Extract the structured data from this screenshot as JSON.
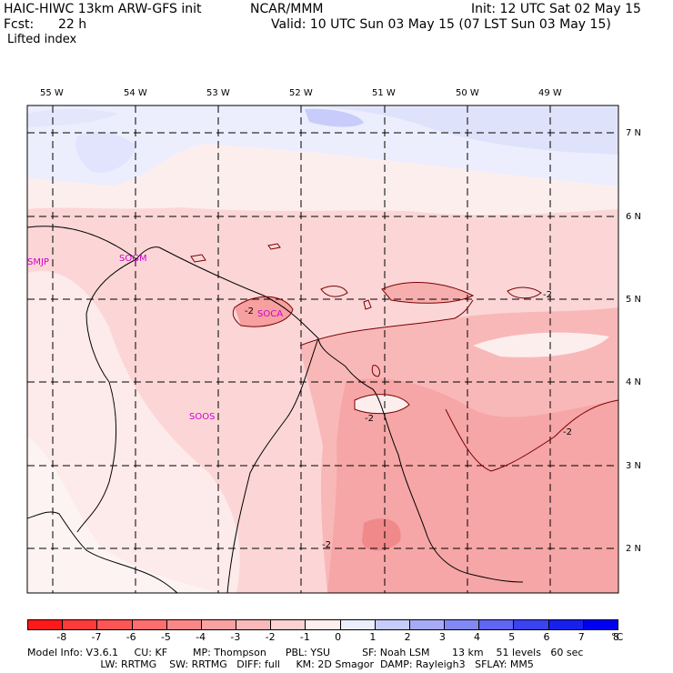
{
  "header": {
    "model": "HAIC-HIWC 13km ARW-GFS init",
    "org": "NCAR/MMM",
    "init": "Init: 12 UTC Sat 02 May 15",
    "fcst_label": "Fcst:",
    "fcst_value": "22 h",
    "valid": "Valid: 10 UTC Sun 03 May 15 (07 LST Sun 03 May 15)",
    "field": "Lifted index"
  },
  "map": {
    "lon_labels": [
      "55 W",
      "54 W",
      "53 W",
      "52 W",
      "51 W",
      "50 W",
      "49 W"
    ],
    "lat_labels": [
      "7 N",
      "6 N",
      "5 N",
      "4 N",
      "3 N",
      "2 N"
    ],
    "stations": [
      "SMJP",
      "SOGM",
      "SOCA",
      "SOOS"
    ],
    "contour_labels": [
      "-2",
      "-2",
      "-2",
      "-2",
      "-2"
    ]
  },
  "colorbar": {
    "unit": "°C",
    "ticks": [
      "-8",
      "-7",
      "-6",
      "-5",
      "-4",
      "-3",
      "-2",
      "-1",
      "0",
      "1",
      "2",
      "3",
      "4",
      "5",
      "6",
      "7",
      "8"
    ],
    "colors": [
      "#ff1a1a",
      "#ff3a3a",
      "#ff5555",
      "#ff6e6e",
      "#fa8787",
      "#f9a0a0",
      "#fab9b9",
      "#fcd2d2",
      "#ffeeee",
      "#eceefd",
      "#c8ccfb",
      "#a6abf8",
      "#8289f5",
      "#5e66f2",
      "#3a43ef",
      "#1820ec",
      "#0000f0"
    ]
  },
  "model_info": {
    "line1": "Model Info: V3.6.1     CU: KF        MP: Thompson      PBL: YSU          SF: Noah LSM       13 km    51 levels   60 sec",
    "line2": "                       LW: RRTMG    SW: RRTMG   DIFF: full     KM: 2D Smagor  DAMP: Rayleigh3   SFLAY: MM5"
  }
}
